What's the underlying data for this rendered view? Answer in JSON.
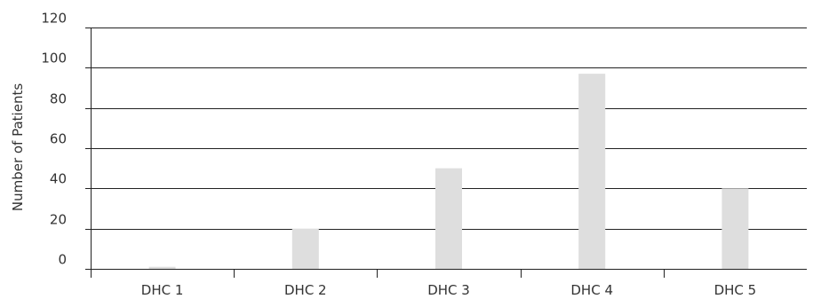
{
  "chart_data": {
    "type": "bar",
    "title": "",
    "xlabel": "",
    "ylabel": "Number of Patients",
    "categories": [
      "DHC 1",
      "DHC 2",
      "DHC 3",
      "DHC 4",
      "DHC 5"
    ],
    "values": [
      1,
      20,
      50,
      97,
      40
    ],
    "ylim": [
      0,
      120
    ],
    "yticks": [
      0,
      20,
      40,
      60,
      80,
      100,
      120
    ],
    "grid": true,
    "bar_color": "#dedede"
  }
}
